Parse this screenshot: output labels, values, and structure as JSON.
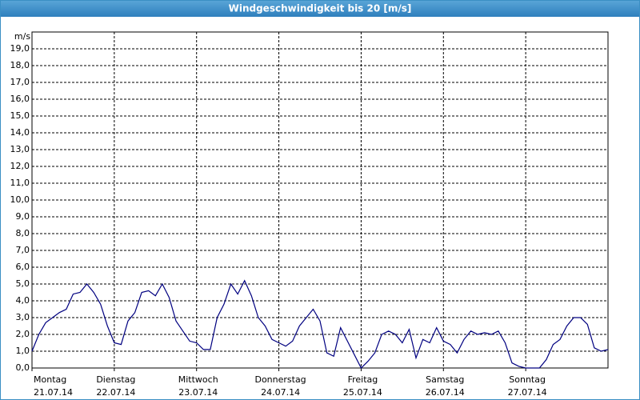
{
  "chart_data": {
    "type": "line",
    "title": "Windgeschwindigkeit bis 20 [m/s]",
    "y_label": "m/s",
    "x": [
      0,
      2,
      4,
      6,
      8,
      10,
      12,
      14,
      16,
      18,
      20,
      22,
      24,
      26,
      28,
      30,
      32,
      34,
      36,
      38,
      40,
      42,
      44,
      46,
      48,
      50,
      52,
      54,
      56,
      58,
      60,
      62,
      64,
      66,
      68,
      70,
      72,
      74,
      76,
      78,
      80,
      82,
      84,
      86,
      88,
      90,
      92,
      94,
      96,
      98,
      100,
      102,
      104,
      106,
      108,
      110,
      112,
      114,
      116,
      118,
      120,
      122,
      124,
      126,
      128,
      130,
      132,
      134,
      136,
      138,
      140,
      142,
      144,
      146,
      148,
      150,
      152,
      154,
      156,
      158,
      160,
      162,
      164,
      166,
      168
    ],
    "series": [
      {
        "name": "Windgeschwindigkeit",
        "color": "#000080",
        "values": [
          1.0,
          2.0,
          2.7,
          3.0,
          3.3,
          3.5,
          4.4,
          4.5,
          5.0,
          4.5,
          3.8,
          2.5,
          1.5,
          1.4,
          2.8,
          3.3,
          4.5,
          4.6,
          4.3,
          5.0,
          4.2,
          2.8,
          2.2,
          1.6,
          1.5,
          1.1,
          1.1,
          3.0,
          3.8,
          5.0,
          4.4,
          5.2,
          4.3,
          3.0,
          2.5,
          1.7,
          1.5,
          1.3,
          1.6,
          2.5,
          3.0,
          3.5,
          2.8,
          0.9,
          0.7,
          2.4,
          1.6,
          0.8,
          0.0,
          0.4,
          0.9,
          2.0,
          2.2,
          2.0,
          1.5,
          2.3,
          0.6,
          1.7,
          1.5,
          2.4,
          1.6,
          1.4,
          0.9,
          1.7,
          2.2,
          2.0,
          2.1,
          2.0,
          2.2,
          1.5,
          0.3,
          0.1,
          0.0,
          0.0,
          0.0,
          0.5,
          1.4,
          1.7,
          2.5,
          3.0,
          3.0,
          2.6,
          1.2,
          1.0,
          1.1
        ]
      }
    ],
    "xlim": [
      0,
      168
    ],
    "xticks": [
      {
        "value": 0,
        "label": "Montag",
        "date": "21.07.14"
      },
      {
        "value": 24,
        "label": "Dienstag",
        "date": "22.07.14"
      },
      {
        "value": 48,
        "label": "Mittwoch",
        "date": "23.07.14"
      },
      {
        "value": 72,
        "label": "Donnerstag",
        "date": "24.07.14"
      },
      {
        "value": 96,
        "label": "Freitag",
        "date": "25.07.14"
      },
      {
        "value": 120,
        "label": "Samstag",
        "date": "26.07.14"
      },
      {
        "value": 144,
        "label": "Sonntag",
        "date": "27.07.14"
      }
    ],
    "ylim": [
      0,
      20
    ],
    "yticks": [
      {
        "value": 0,
        "label": "0,0"
      },
      {
        "value": 1,
        "label": "1,0"
      },
      {
        "value": 2,
        "label": "2,0"
      },
      {
        "value": 3,
        "label": "3,0"
      },
      {
        "value": 4,
        "label": "4,0"
      },
      {
        "value": 5,
        "label": "5,0"
      },
      {
        "value": 6,
        "label": "6,0"
      },
      {
        "value": 7,
        "label": "7,0"
      },
      {
        "value": 8,
        "label": "8,0"
      },
      {
        "value": 9,
        "label": "9,0"
      },
      {
        "value": 10,
        "label": "10,0"
      },
      {
        "value": 11,
        "label": "11,0"
      },
      {
        "value": 12,
        "label": "12,0"
      },
      {
        "value": 13,
        "label": "13,0"
      },
      {
        "value": 14,
        "label": "14,0"
      },
      {
        "value": 15,
        "label": "15,0"
      },
      {
        "value": 16,
        "label": "16,0"
      },
      {
        "value": 17,
        "label": "17,0"
      },
      {
        "value": 18,
        "label": "18,0"
      },
      {
        "value": 19,
        "label": "19,0"
      }
    ],
    "grid": true
  }
}
